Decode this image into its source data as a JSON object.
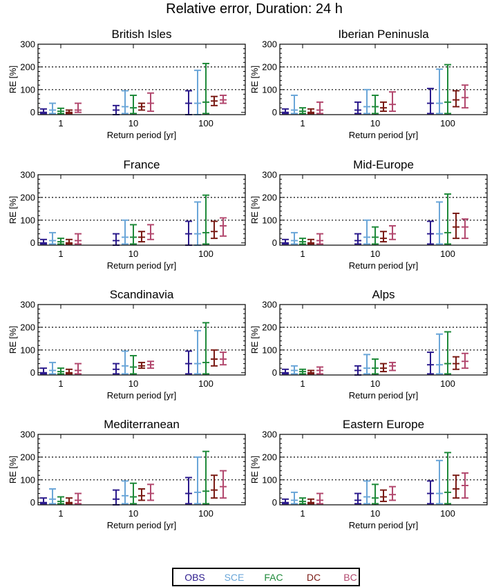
{
  "figure": {
    "title": "Relative error, Duration: 24 h",
    "legend": [
      {
        "label": "OBS",
        "color": "#2b1a8c"
      },
      {
        "label": "SCE",
        "color": "#6aa6d8"
      },
      {
        "label": "FAC",
        "color": "#1f8a3a"
      },
      {
        "label": "DC",
        "color": "#7a1a14"
      },
      {
        "label": "BC",
        "color": "#b2486e"
      }
    ]
  },
  "chart_data": [
    {
      "type": "errorbar",
      "title": "British Isles",
      "xlabel": "Return period [yr]",
      "ylabel": "RE [%]",
      "categories": [
        "1",
        "10",
        "100"
      ],
      "ylim": [
        -10,
        300
      ],
      "yticks": [
        "0",
        "100",
        "200",
        "300"
      ],
      "dotted_grid_y": [
        100,
        200
      ],
      "series": [
        {
          "color": "#2b1a8c",
          "points": [
            [
              0,
              -5,
              15
            ],
            [
              10,
              -10,
              30
            ],
            [
              40,
              -10,
              95
            ]
          ]
        },
        {
          "color": "#6aa6d8",
          "points": [
            [
              10,
              -5,
              40
            ],
            [
              25,
              -5,
              95
            ],
            [
              40,
              -10,
              185
            ]
          ]
        },
        {
          "color": "#1f8a3a",
          "points": [
            [
              5,
              -5,
              18
            ],
            [
              20,
              -5,
              75
            ],
            [
              45,
              -5,
              215
            ]
          ]
        },
        {
          "color": "#7a1a14",
          "points": [
            [
              0,
              -5,
              10
            ],
            [
              25,
              10,
              40
            ],
            [
              50,
              30,
              70
            ]
          ]
        },
        {
          "color": "#b2486e",
          "points": [
            [
              10,
              0,
              40
            ],
            [
              40,
              5,
              85
            ],
            [
              55,
              40,
              75
            ]
          ]
        }
      ]
    },
    {
      "type": "errorbar",
      "title": "Iberian Peninusla",
      "xlabel": "Return period [yr]",
      "ylabel": "RE [%]",
      "categories": [
        "1",
        "10",
        "100"
      ],
      "ylim": [
        -10,
        300
      ],
      "yticks": [
        "0",
        "100",
        "200",
        "300"
      ],
      "dotted_grid_y": [
        100,
        200
      ],
      "series": [
        {
          "color": "#2b1a8c",
          "points": [
            [
              0,
              -5,
              15
            ],
            [
              10,
              -5,
              45
            ],
            [
              40,
              -5,
              105
            ]
          ]
        },
        {
          "color": "#6aa6d8",
          "points": [
            [
              10,
              -5,
              75
            ],
            [
              25,
              -5,
              100
            ],
            [
              40,
              -5,
              190
            ]
          ]
        },
        {
          "color": "#1f8a3a",
          "points": [
            [
              5,
              -5,
              20
            ],
            [
              25,
              -5,
              75
            ],
            [
              45,
              -5,
              210
            ]
          ]
        },
        {
          "color": "#7a1a14",
          "points": [
            [
              0,
              -5,
              15
            ],
            [
              20,
              5,
              45
            ],
            [
              55,
              25,
              95
            ]
          ]
        },
        {
          "color": "#b2486e",
          "points": [
            [
              10,
              -5,
              45
            ],
            [
              35,
              5,
              90
            ],
            [
              65,
              20,
              120
            ]
          ]
        }
      ]
    },
    {
      "type": "errorbar",
      "title": "France",
      "xlabel": "Return period [yr]",
      "ylabel": "RE [%]",
      "categories": [
        "1",
        "10",
        "100"
      ],
      "ylim": [
        -10,
        300
      ],
      "yticks": [
        "0",
        "100",
        "200",
        "300"
      ],
      "dotted_grid_y": [
        100,
        200
      ],
      "series": [
        {
          "color": "#2b1a8c",
          "points": [
            [
              0,
              -5,
              15
            ],
            [
              10,
              -10,
              40
            ],
            [
              40,
              -10,
              95
            ]
          ]
        },
        {
          "color": "#6aa6d8",
          "points": [
            [
              10,
              -5,
              45
            ],
            [
              25,
              -5,
              100
            ],
            [
              40,
              -10,
              180
            ]
          ]
        },
        {
          "color": "#1f8a3a",
          "points": [
            [
              5,
              -5,
              20
            ],
            [
              25,
              -5,
              80
            ],
            [
              45,
              -5,
              210
            ]
          ]
        },
        {
          "color": "#7a1a14",
          "points": [
            [
              0,
              -5,
              15
            ],
            [
              25,
              5,
              50
            ],
            [
              50,
              20,
              95
            ]
          ]
        },
        {
          "color": "#b2486e",
          "points": [
            [
              10,
              -5,
              40
            ],
            [
              40,
              15,
              80
            ],
            [
              75,
              30,
              110
            ]
          ]
        }
      ]
    },
    {
      "type": "errorbar",
      "title": "Mid-Europe",
      "xlabel": "Return period [yr]",
      "ylabel": "RE [%]",
      "categories": [
        "1",
        "10",
        "100"
      ],
      "ylim": [
        -10,
        300
      ],
      "yticks": [
        "0",
        "100",
        "200",
        "300"
      ],
      "dotted_grid_y": [
        100,
        200
      ],
      "series": [
        {
          "color": "#2b1a8c",
          "points": [
            [
              0,
              -5,
              15
            ],
            [
              10,
              -5,
              40
            ],
            [
              40,
              -5,
              95
            ]
          ]
        },
        {
          "color": "#6aa6d8",
          "points": [
            [
              10,
              -5,
              45
            ],
            [
              25,
              -5,
              100
            ],
            [
              40,
              -5,
              180
            ]
          ]
        },
        {
          "color": "#1f8a3a",
          "points": [
            [
              5,
              -5,
              20
            ],
            [
              25,
              -5,
              70
            ],
            [
              45,
              -5,
              215
            ]
          ]
        },
        {
          "color": "#7a1a14",
          "points": [
            [
              0,
              -5,
              15
            ],
            [
              20,
              5,
              50
            ],
            [
              70,
              20,
              130
            ]
          ]
        },
        {
          "color": "#b2486e",
          "points": [
            [
              10,
              -5,
              40
            ],
            [
              40,
              15,
              75
            ],
            [
              70,
              20,
              105
            ]
          ]
        }
      ]
    },
    {
      "type": "errorbar",
      "title": "Scandinavia",
      "xlabel": "Return period [yr]",
      "ylabel": "RE [%]",
      "categories": [
        "1",
        "10",
        "100"
      ],
      "ylim": [
        -10,
        300
      ],
      "yticks": [
        "0",
        "100",
        "200",
        "300"
      ],
      "dotted_grid_y": [
        100,
        200
      ],
      "series": [
        {
          "color": "#2b1a8c",
          "points": [
            [
              0,
              -5,
              20
            ],
            [
              15,
              -5,
              40
            ],
            [
              40,
              -5,
              95
            ]
          ]
        },
        {
          "color": "#6aa6d8",
          "points": [
            [
              10,
              -5,
              45
            ],
            [
              30,
              -5,
              95
            ],
            [
              40,
              -5,
              185
            ]
          ]
        },
        {
          "color": "#1f8a3a",
          "points": [
            [
              5,
              -5,
              20
            ],
            [
              25,
              -5,
              75
            ],
            [
              45,
              -5,
              220
            ]
          ]
        },
        {
          "color": "#7a1a14",
          "points": [
            [
              0,
              -5,
              15
            ],
            [
              30,
              20,
              45
            ],
            [
              60,
              30,
              100
            ]
          ]
        },
        {
          "color": "#b2486e",
          "points": [
            [
              10,
              -5,
              40
            ],
            [
              35,
              20,
              50
            ],
            [
              60,
              35,
              90
            ]
          ]
        }
      ]
    },
    {
      "type": "errorbar",
      "title": "Alps",
      "xlabel": "Return period [yr]",
      "ylabel": "RE [%]",
      "categories": [
        "1",
        "10",
        "100"
      ],
      "ylim": [
        -10,
        300
      ],
      "yticks": [
        "0",
        "100",
        "200",
        "300"
      ],
      "dotted_grid_y": [
        100,
        200
      ],
      "series": [
        {
          "color": "#2b1a8c",
          "points": [
            [
              0,
              -5,
              15
            ],
            [
              10,
              -10,
              30
            ],
            [
              35,
              -5,
              90
            ]
          ]
        },
        {
          "color": "#6aa6d8",
          "points": [
            [
              10,
              -5,
              30
            ],
            [
              20,
              -5,
              80
            ],
            [
              35,
              -5,
              170
            ]
          ]
        },
        {
          "color": "#1f8a3a",
          "points": [
            [
              5,
              -5,
              15
            ],
            [
              20,
              -5,
              60
            ],
            [
              40,
              -5,
              180
            ]
          ]
        },
        {
          "color": "#7a1a14",
          "points": [
            [
              0,
              -5,
              10
            ],
            [
              20,
              5,
              40
            ],
            [
              40,
              15,
              70
            ]
          ]
        },
        {
          "color": "#b2486e",
          "points": [
            [
              10,
              -5,
              25
            ],
            [
              30,
              10,
              45
            ],
            [
              50,
              20,
              85
            ]
          ]
        }
      ]
    },
    {
      "type": "errorbar",
      "title": "Mediterranean",
      "xlabel": "Return period [yr]",
      "ylabel": "RE [%]",
      "categories": [
        "1",
        "10",
        "100"
      ],
      "ylim": [
        -10,
        300
      ],
      "yticks": [
        "0",
        "100",
        "200",
        "300"
      ],
      "dotted_grid_y": [
        100,
        200
      ],
      "series": [
        {
          "color": "#2b1a8c",
          "points": [
            [
              0,
              -5,
              20
            ],
            [
              15,
              -10,
              55
            ],
            [
              40,
              -5,
              110
            ]
          ]
        },
        {
          "color": "#6aa6d8",
          "points": [
            [
              15,
              -5,
              60
            ],
            [
              30,
              -5,
              95
            ],
            [
              45,
              -5,
              200
            ]
          ]
        },
        {
          "color": "#1f8a3a",
          "points": [
            [
              5,
              -5,
              25
            ],
            [
              25,
              -5,
              85
            ],
            [
              50,
              -5,
              225
            ]
          ]
        },
        {
          "color": "#7a1a14",
          "points": [
            [
              0,
              -5,
              20
            ],
            [
              30,
              10,
              60
            ],
            [
              55,
              20,
              120
            ]
          ]
        },
        {
          "color": "#b2486e",
          "points": [
            [
              10,
              -5,
              40
            ],
            [
              40,
              10,
              80
            ],
            [
              70,
              20,
              140
            ]
          ]
        }
      ]
    },
    {
      "type": "errorbar",
      "title": "Eastern Europe",
      "xlabel": "Return period [yr]",
      "ylabel": "RE [%]",
      "categories": [
        "1",
        "10",
        "100"
      ],
      "ylim": [
        -10,
        300
      ],
      "yticks": [
        "0",
        "100",
        "200",
        "300"
      ],
      "dotted_grid_y": [
        100,
        200
      ],
      "series": [
        {
          "color": "#2b1a8c",
          "points": [
            [
              0,
              -5,
              15
            ],
            [
              10,
              -5,
              40
            ],
            [
              40,
              -5,
              95
            ]
          ]
        },
        {
          "color": "#6aa6d8",
          "points": [
            [
              10,
              -5,
              45
            ],
            [
              25,
              -5,
              95
            ],
            [
              40,
              -5,
              185
            ]
          ]
        },
        {
          "color": "#1f8a3a",
          "points": [
            [
              5,
              -5,
              20
            ],
            [
              20,
              -5,
              80
            ],
            [
              45,
              -5,
              220
            ]
          ]
        },
        {
          "color": "#7a1a14",
          "points": [
            [
              0,
              -5,
              15
            ],
            [
              25,
              5,
              55
            ],
            [
              60,
              20,
              120
            ]
          ]
        },
        {
          "color": "#b2486e",
          "points": [
            [
              10,
              -5,
              40
            ],
            [
              35,
              10,
              70
            ],
            [
              75,
              20,
              130
            ]
          ]
        }
      ]
    }
  ]
}
